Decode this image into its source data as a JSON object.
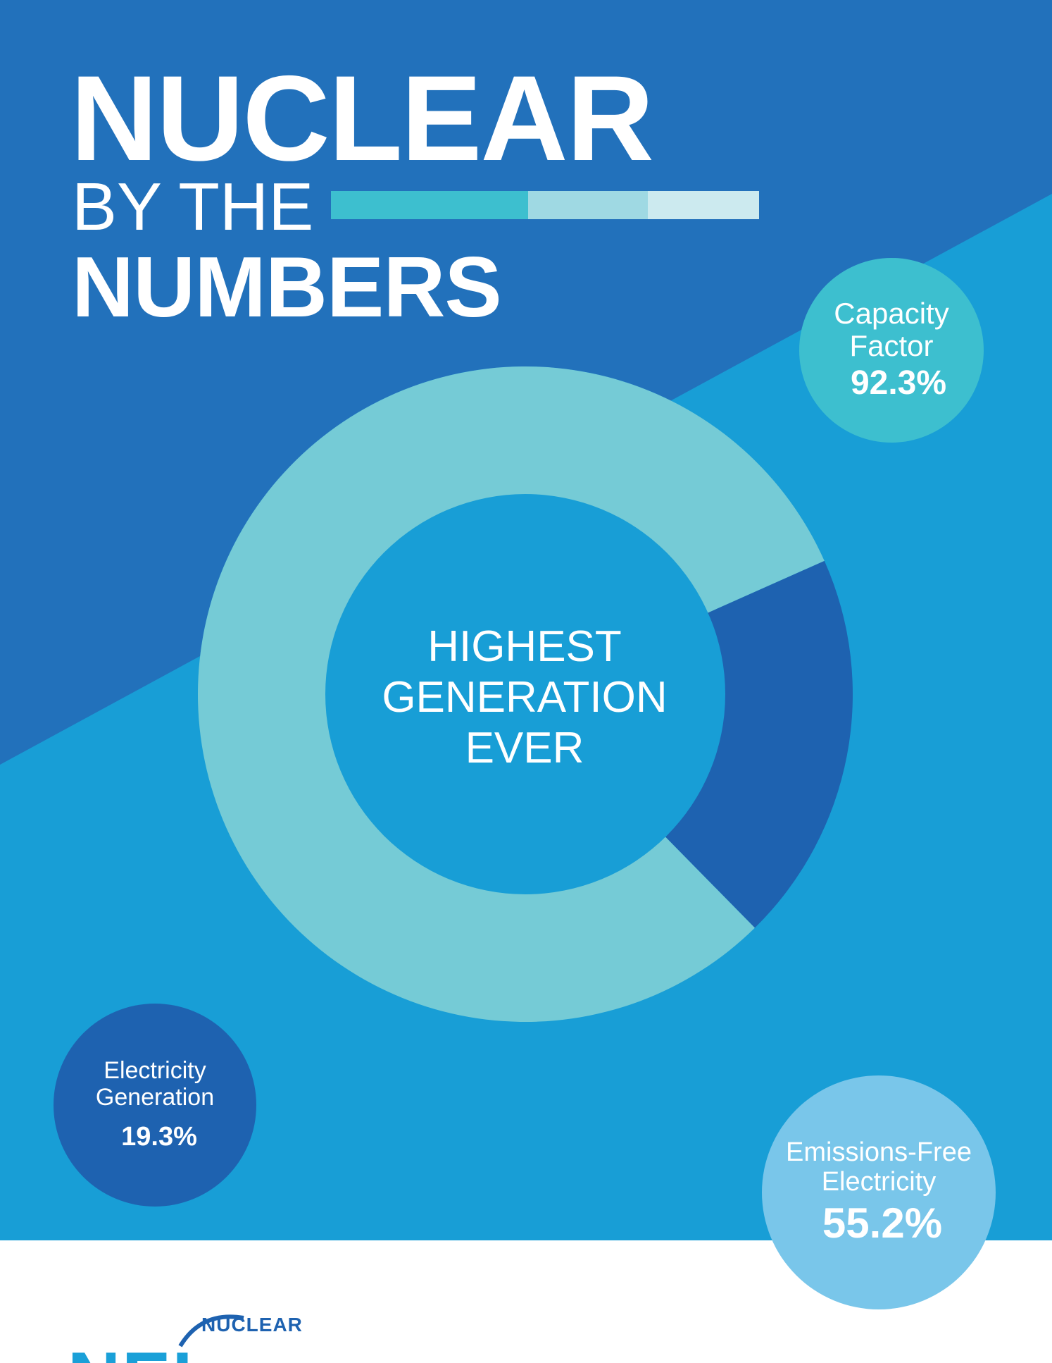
{
  "header": {
    "title_main": "NUCLEAR",
    "title_mid": "BY THE",
    "title_bottom": "NUMBERS"
  },
  "center": {
    "line1": "HIGHEST",
    "line2": "GENERATION",
    "line3": "EVER"
  },
  "stats": {
    "capacity": {
      "label_1": "Capacity",
      "label_2": "Factor",
      "value": "92.3%"
    },
    "electricity": {
      "label_1": "Electricity",
      "label_2": "Generation",
      "value": "19.3%"
    },
    "emissions": {
      "label_1": "Emissions-Free",
      "label_2": "Electricity",
      "value": "55.2%"
    }
  },
  "logo": {
    "letters": "NEI",
    "word": "NUCLEAR"
  },
  "colors": {
    "dark_blue": "#2271bb",
    "mid_blue": "#189ed6",
    "light_teal": "#75cbd6",
    "deep_blue": "#1e62b0",
    "teal": "#3dbfcf",
    "sky": "#79c6ea"
  },
  "chart_data": {
    "type": "donut",
    "title": "",
    "center_label": [
      "HIGHEST",
      "GENERATION",
      "EVER"
    ],
    "slices": [
      {
        "value": 80.7
      },
      {
        "value": 19.3
      }
    ]
  }
}
